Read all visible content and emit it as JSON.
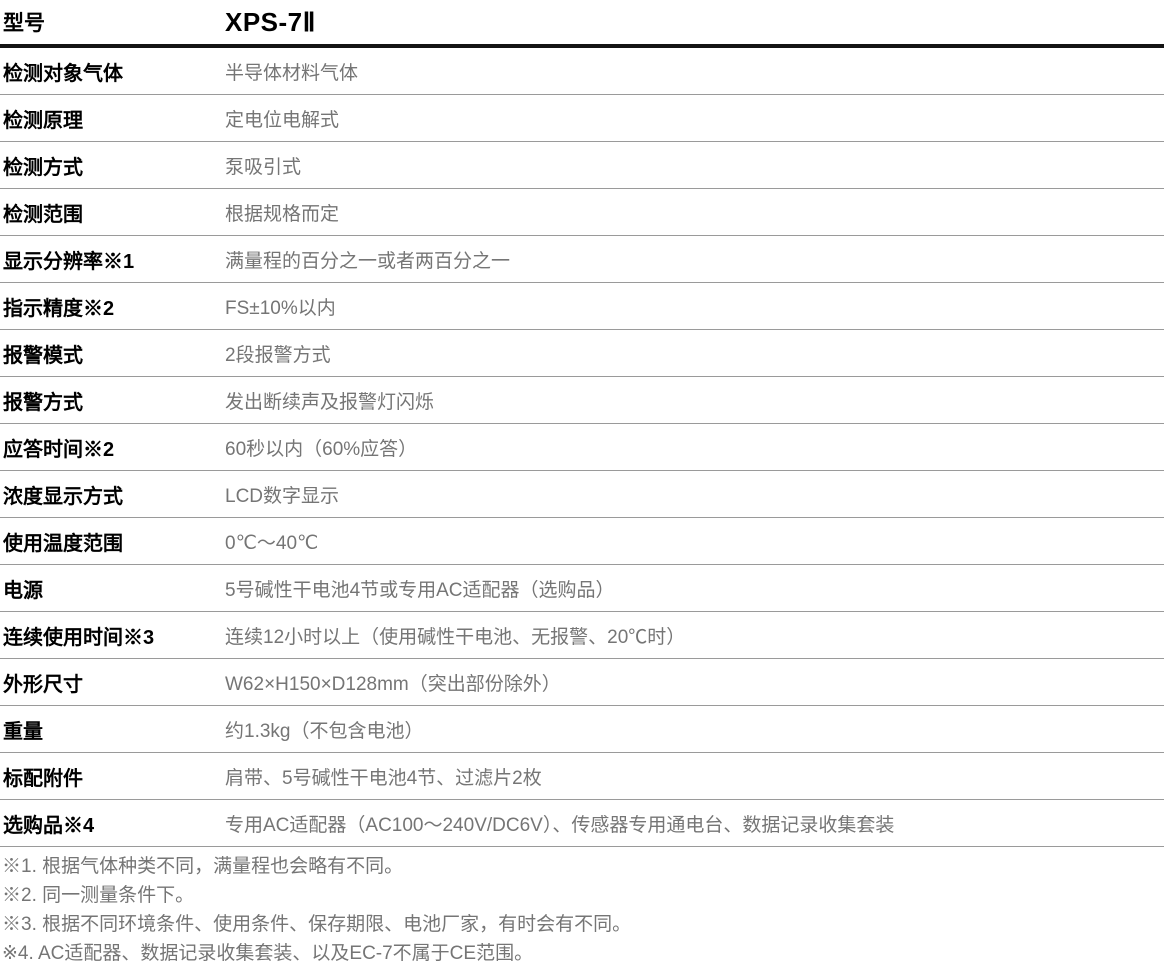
{
  "header": {
    "label": "型号",
    "value": "XPS-7Ⅱ"
  },
  "rows": [
    {
      "label": "检测对象气体",
      "value": "半导体材料气体"
    },
    {
      "label": "检测原理",
      "value": "定电位电解式"
    },
    {
      "label": "检测方式",
      "value": "泵吸引式"
    },
    {
      "label": "检测范围",
      "value": "根据规格而定"
    },
    {
      "label": "显示分辨率※1",
      "value": "满量程的百分之一或者两百分之一"
    },
    {
      "label": "指示精度※2",
      "value": "FS±10%以内"
    },
    {
      "label": "报警模式",
      "value": "2段报警方式"
    },
    {
      "label": "报警方式",
      "value": "发出断续声及报警灯闪烁"
    },
    {
      "label": "应答时间※2",
      "value": "60秒以内（60%应答）"
    },
    {
      "label": "浓度显示方式",
      "value": "LCD数字显示"
    },
    {
      "label": "使用温度范围",
      "value": "0℃～40℃"
    },
    {
      "label": "电源",
      "value": "5号碱性干电池4节或专用AC适配器（选购品）"
    },
    {
      "label": "连续使用时间※3",
      "value": "连续12小时以上（使用碱性干电池、无报警、20℃时）"
    },
    {
      "label": "外形尺寸",
      "value": "W62×H150×D128mm（突出部份除外）"
    },
    {
      "label": "重量",
      "value": "约1.3kg（不包含电池）"
    },
    {
      "label": "标配附件",
      "value": "肩带、5号碱性干电池4节、过滤片2枚"
    },
    {
      "label": "选购品※4",
      "value": "专用AC适配器（AC100～240V/DC6V）、传感器专用通电台、数据记录收集套装"
    }
  ],
  "footnotes": [
    "※1. 根据气体种类不同，满量程也会略有不同。",
    "※2. 同一测量条件下。",
    "※3. 根据不同环境条件、使用条件、保存期限、电池厂家，有时会有不同。",
    "※4. AC适配器、数据记录收集套装、以及EC-7不属于CE范围。"
  ]
}
